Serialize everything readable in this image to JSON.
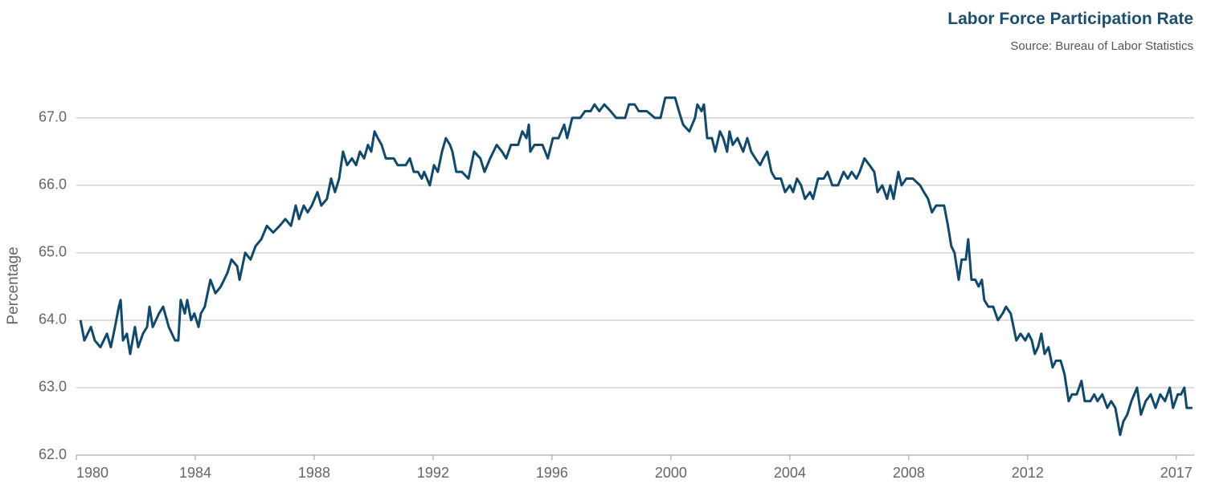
{
  "chart_data": {
    "type": "line",
    "title": "Labor Force Participation Rate",
    "subtitle": "Source: Bureau of Labor Statistics",
    "ylabel": "Percentage",
    "xlim": [
      1980,
      2017.6
    ],
    "xticks": [
      1980,
      1984,
      1988,
      1992,
      1996,
      2000,
      2004,
      2008,
      2012,
      2017
    ],
    "ylim": [
      62,
      67.5
    ],
    "yticks": [
      {
        "value": 62,
        "label": "62.0"
      },
      {
        "value": 63,
        "label": "63.0"
      },
      {
        "value": 64,
        "label": "64.0"
      },
      {
        "value": 65,
        "label": "65.0"
      },
      {
        "value": 66,
        "label": "66.0"
      },
      {
        "value": 67,
        "label": "67.0"
      }
    ],
    "grid": true,
    "x": [
      1980.14,
      1980.27,
      1980.49,
      1980.62,
      1980.81,
      1981.03,
      1981.16,
      1981.3,
      1981.43,
      1981.49,
      1981.57,
      1981.7,
      1981.81,
      1981.97,
      1982.08,
      1982.24,
      1982.38,
      1982.46,
      1982.57,
      1982.78,
      1982.92,
      1983.11,
      1983.32,
      1983.43,
      1983.51,
      1983.65,
      1983.73,
      1983.86,
      1983.97,
      1984.11,
      1984.19,
      1984.32,
      1984.51,
      1984.68,
      1984.86,
      1985.08,
      1985.22,
      1985.41,
      1985.49,
      1985.68,
      1985.86,
      1986.03,
      1986.22,
      1986.41,
      1986.62,
      1986.84,
      1987.03,
      1987.22,
      1987.38,
      1987.49,
      1987.65,
      1987.78,
      1987.92,
      1988.11,
      1988.24,
      1988.43,
      1988.57,
      1988.7,
      1988.84,
      1988.97,
      1989.11,
      1989.27,
      1989.41,
      1989.54,
      1989.68,
      1989.81,
      1989.92,
      1990.03,
      1990.14,
      1990.27,
      1990.41,
      1990.68,
      1990.81,
      1991.08,
      1991.22,
      1991.35,
      1991.49,
      1991.62,
      1991.7,
      1991.89,
      1992.03,
      1992.16,
      1992.3,
      1992.43,
      1992.57,
      1992.65,
      1992.78,
      1992.97,
      1993.19,
      1993.38,
      1993.59,
      1993.73,
      1993.92,
      1994.14,
      1994.32,
      1994.46,
      1994.62,
      1994.86,
      1995.0,
      1995.14,
      1995.22,
      1995.27,
      1995.41,
      1995.68,
      1995.86,
      1996.03,
      1996.22,
      1996.41,
      1996.51,
      1996.68,
      1996.95,
      1997.11,
      1997.3,
      1997.43,
      1997.59,
      1997.76,
      1997.97,
      1998.16,
      1998.46,
      1998.59,
      1998.78,
      1998.92,
      1999.19,
      1999.46,
      1999.65,
      1999.81,
      2000.14,
      2000.27,
      2000.41,
      2000.62,
      2000.81,
      2000.89,
      2001.03,
      2001.11,
      2001.22,
      2001.38,
      2001.49,
      2001.65,
      2001.76,
      2001.89,
      2001.97,
      2002.08,
      2002.24,
      2002.43,
      2002.57,
      2002.7,
      2002.84,
      2003.0,
      2003.11,
      2003.24,
      2003.38,
      2003.51,
      2003.7,
      2003.84,
      2004.0,
      2004.11,
      2004.24,
      2004.38,
      2004.51,
      2004.68,
      2004.78,
      2004.95,
      2005.14,
      2005.27,
      2005.43,
      2005.62,
      2005.81,
      2005.95,
      2006.08,
      2006.24,
      2006.35,
      2006.51,
      2006.68,
      2006.84,
      2006.95,
      2007.11,
      2007.27,
      2007.38,
      2007.49,
      2007.65,
      2007.76,
      2007.92,
      2008.14,
      2008.38,
      2008.51,
      2008.65,
      2008.78,
      2008.92,
      2009.19,
      2009.32,
      2009.43,
      2009.54,
      2009.68,
      2009.78,
      2009.92,
      2010.0,
      2010.11,
      2010.24,
      2010.35,
      2010.46,
      2010.54,
      2010.68,
      2010.84,
      2011.0,
      2011.16,
      2011.27,
      2011.43,
      2011.62,
      2011.76,
      2011.92,
      2012.03,
      2012.14,
      2012.24,
      2012.35,
      2012.46,
      2012.57,
      2012.7,
      2012.84,
      2012.95,
      2013.11,
      2013.24,
      2013.38,
      2013.49,
      2013.65,
      2013.81,
      2013.92,
      2014.11,
      2014.24,
      2014.35,
      2014.51,
      2014.68,
      2014.81,
      2014.95,
      2015.11,
      2015.22,
      2015.35,
      2015.49,
      2015.68,
      2015.81,
      2015.97,
      2016.14,
      2016.3,
      2016.46,
      2016.62,
      2016.78,
      2016.89,
      2017.05,
      2017.16,
      2017.27,
      2017.35,
      2017.54
    ],
    "series": [
      {
        "name": "Labor Force Participation Rate",
        "color": "#0f4a6e",
        "values": [
          64.0,
          63.7,
          63.9,
          63.7,
          63.6,
          63.8,
          63.6,
          63.9,
          64.2,
          64.3,
          63.7,
          63.8,
          63.5,
          63.9,
          63.6,
          63.8,
          63.9,
          64.2,
          63.9,
          64.1,
          64.2,
          63.9,
          63.7,
          63.7,
          64.3,
          64.1,
          64.3,
          64.0,
          64.1,
          63.9,
          64.1,
          64.2,
          64.6,
          64.4,
          64.5,
          64.7,
          64.9,
          64.8,
          64.6,
          65.0,
          64.9,
          65.1,
          65.2,
          65.4,
          65.3,
          65.4,
          65.5,
          65.4,
          65.7,
          65.5,
          65.7,
          65.6,
          65.7,
          65.9,
          65.7,
          65.8,
          66.1,
          65.9,
          66.1,
          66.5,
          66.3,
          66.4,
          66.3,
          66.5,
          66.4,
          66.6,
          66.5,
          66.8,
          66.7,
          66.6,
          66.4,
          66.4,
          66.3,
          66.3,
          66.4,
          66.2,
          66.2,
          66.1,
          66.2,
          66.0,
          66.3,
          66.2,
          66.5,
          66.7,
          66.6,
          66.5,
          66.2,
          66.2,
          66.1,
          66.5,
          66.4,
          66.2,
          66.4,
          66.6,
          66.5,
          66.4,
          66.6,
          66.6,
          66.8,
          66.7,
          66.9,
          66.5,
          66.6,
          66.6,
          66.4,
          66.7,
          66.7,
          66.9,
          66.7,
          67.0,
          67.0,
          67.1,
          67.1,
          67.2,
          67.1,
          67.2,
          67.1,
          67.0,
          67.0,
          67.2,
          67.2,
          67.1,
          67.1,
          67.0,
          67.0,
          67.3,
          67.3,
          67.1,
          66.9,
          66.8,
          67.0,
          67.2,
          67.1,
          67.2,
          66.7,
          66.7,
          66.5,
          66.8,
          66.7,
          66.5,
          66.8,
          66.6,
          66.7,
          66.5,
          66.7,
          66.5,
          66.4,
          66.3,
          66.4,
          66.5,
          66.2,
          66.1,
          66.1,
          65.9,
          66.0,
          65.9,
          66.1,
          66.0,
          65.8,
          65.9,
          65.8,
          66.1,
          66.1,
          66.2,
          66.0,
          66.0,
          66.2,
          66.1,
          66.2,
          66.1,
          66.2,
          66.4,
          66.3,
          66.2,
          65.9,
          66.0,
          65.8,
          66.0,
          65.8,
          66.2,
          66.0,
          66.1,
          66.1,
          66.0,
          65.9,
          65.8,
          65.6,
          65.7,
          65.7,
          65.4,
          65.1,
          65.0,
          64.6,
          64.9,
          64.9,
          65.2,
          64.6,
          64.6,
          64.5,
          64.6,
          64.3,
          64.2,
          64.2,
          64.0,
          64.1,
          64.2,
          64.1,
          63.7,
          63.8,
          63.7,
          63.8,
          63.7,
          63.5,
          63.6,
          63.8,
          63.5,
          63.6,
          63.3,
          63.4,
          63.4,
          63.2,
          62.8,
          62.9,
          62.9,
          63.1,
          62.8,
          62.8,
          62.9,
          62.8,
          62.9,
          62.7,
          62.8,
          62.7,
          62.3,
          62.5,
          62.6,
          62.8,
          63.0,
          62.6,
          62.8,
          62.9,
          62.7,
          62.9,
          62.8,
          63.0,
          62.7,
          62.9,
          62.9,
          63.0,
          62.7,
          62.7
        ]
      }
    ]
  }
}
